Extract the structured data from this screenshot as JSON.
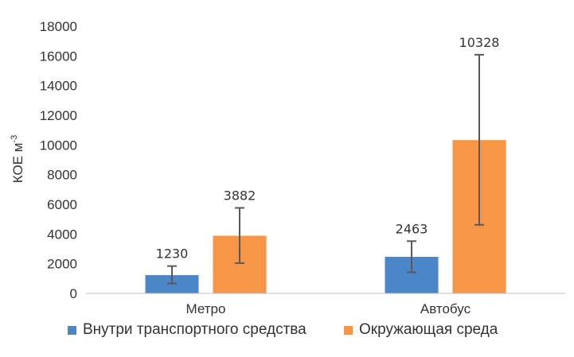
{
  "chart_data": {
    "type": "bar",
    "categories": [
      "Метро",
      "Автобус"
    ],
    "series": [
      {
        "name": "Внутри транспортного средства",
        "color": "#4a86c8",
        "values": [
          1230,
          2463
        ],
        "error_low": [
          670,
          1420
        ],
        "error_high": [
          1840,
          3520
        ],
        "labels": [
          "1230",
          "2463"
        ]
      },
      {
        "name": "Окружающая среда",
        "color": "#f79646",
        "values": [
          3882,
          10328
        ],
        "error_low": [
          2040,
          4620
        ],
        "error_high": [
          5760,
          16080
        ],
        "labels": [
          "3882",
          "10328"
        ]
      }
    ],
    "ylabel": "КОЕ м",
    "ylabel_sup": "-3",
    "ylim": [
      0,
      18000
    ],
    "yticks": [
      0,
      2000,
      4000,
      6000,
      8000,
      10000,
      12000,
      14000,
      16000,
      18000
    ],
    "grid": false,
    "legend_position": "bottom",
    "error_bar_color": "#595959",
    "axis_color": "#bfbfbf"
  }
}
